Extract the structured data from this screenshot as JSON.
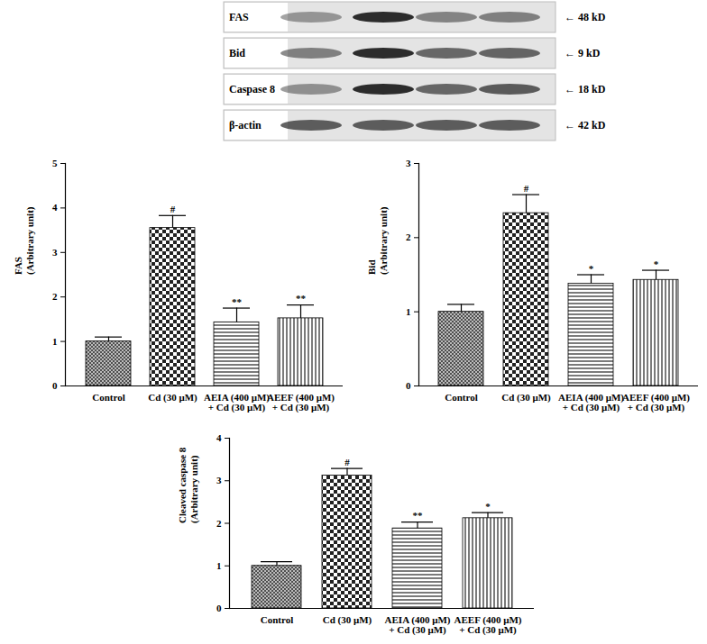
{
  "blot": {
    "rows": [
      {
        "label": "FAS",
        "size": "← 48 kD"
      },
      {
        "label": "Bid",
        "size": "← 9 kD"
      },
      {
        "label": "Caspase 8",
        "size": "← 18 kD"
      },
      {
        "label": "β-actin",
        "size": "← 42 kD"
      }
    ]
  },
  "chart_data": [
    {
      "type": "bar",
      "ylabel": "FAS (Arbitrary unit)",
      "categories": [
        "Control",
        "Cd (30 μM)",
        "AEIA (400 μM) + Cd (30 μM)",
        "AEEF (400 μM) + Cd (30 μM)"
      ],
      "values": [
        1.0,
        3.55,
        1.43,
        1.52
      ],
      "errors": [
        0.1,
        0.28,
        0.32,
        0.3
      ],
      "annotations": [
        null,
        "#",
        "**",
        "**"
      ],
      "ylim": [
        0,
        5
      ],
      "yticks": [
        0,
        1,
        2,
        3,
        4,
        5
      ]
    },
    {
      "type": "bar",
      "ylabel": "Bid (Arbitrary unit)",
      "categories": [
        "Control",
        "Cd (30 μM)",
        "AEIA (400 μM) + Cd (30 μM)",
        "AEEF (400 μM) + Cd (30 μM)"
      ],
      "values": [
        1.0,
        2.33,
        1.38,
        1.43
      ],
      "errors": [
        0.1,
        0.25,
        0.12,
        0.13
      ],
      "annotations": [
        null,
        "#",
        "*",
        "*"
      ],
      "ylim": [
        0,
        3
      ],
      "yticks": [
        0,
        1,
        2,
        3
      ]
    },
    {
      "type": "bar",
      "ylabel": "Cleaved caspase 8 (Arbitrary unit)",
      "categories": [
        "Control",
        "Cd (30 μM)",
        "AEIA (400 μM) + Cd (30 μM)",
        "AEEF (400 μM) + Cd (30 μM)"
      ],
      "values": [
        1.0,
        3.12,
        1.88,
        2.12
      ],
      "errors": [
        0.1,
        0.17,
        0.15,
        0.13
      ],
      "annotations": [
        null,
        "#",
        "**",
        "*"
      ],
      "ylim": [
        0,
        4
      ],
      "yticks": [
        0,
        1,
        2,
        3,
        4
      ]
    }
  ]
}
